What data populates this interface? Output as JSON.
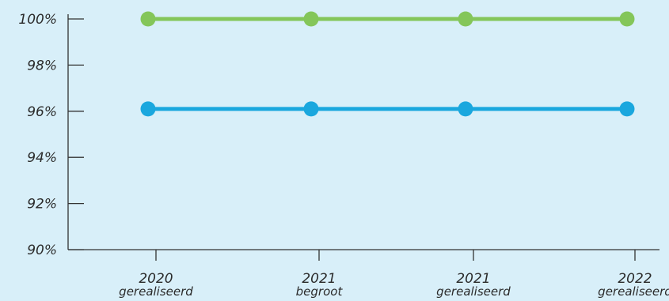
{
  "chart_data": {
    "type": "line",
    "categories": [
      {
        "year": "2020",
        "kind": "gerealiseerd"
      },
      {
        "year": "2021",
        "kind": "begroot"
      },
      {
        "year": "2021",
        "kind": "gerealiseerd"
      },
      {
        "year": "2022",
        "kind": "gerealiseerd"
      }
    ],
    "series": [
      {
        "values": [
          100,
          100,
          100,
          100
        ],
        "color": "#84c65a"
      },
      {
        "values": [
          96.1,
          96.1,
          96.1,
          96.1
        ],
        "color": "#1aa7de"
      }
    ],
    "ylim": [
      90,
      100
    ],
    "yticks": [
      90,
      92,
      94,
      96,
      98,
      100
    ],
    "ytick_format": "%",
    "grid": false,
    "title": "",
    "xlabel": "",
    "ylabel": ""
  }
}
